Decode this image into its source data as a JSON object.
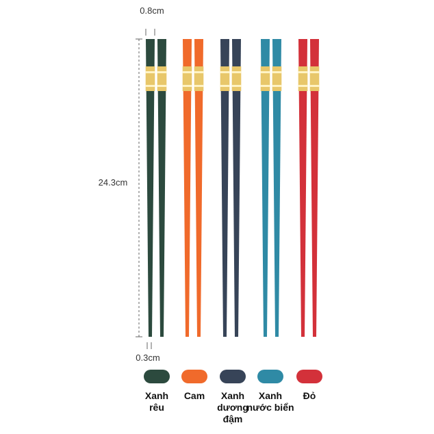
{
  "dimensions": {
    "top_width": "0.8cm",
    "length": "24.3cm",
    "tip_width": "0.3cm"
  },
  "options": [
    {
      "label": "Xanh rêu",
      "color": "#2c4a3e"
    },
    {
      "label": "Cam",
      "color": "#f06a2b"
    },
    {
      "label": "Xanh dương đậm",
      "color": "#374458"
    },
    {
      "label": "Xanh nước biển",
      "color": "#2f8aa5"
    },
    {
      "label": "Đỏ",
      "color": "#d3313a"
    }
  ]
}
